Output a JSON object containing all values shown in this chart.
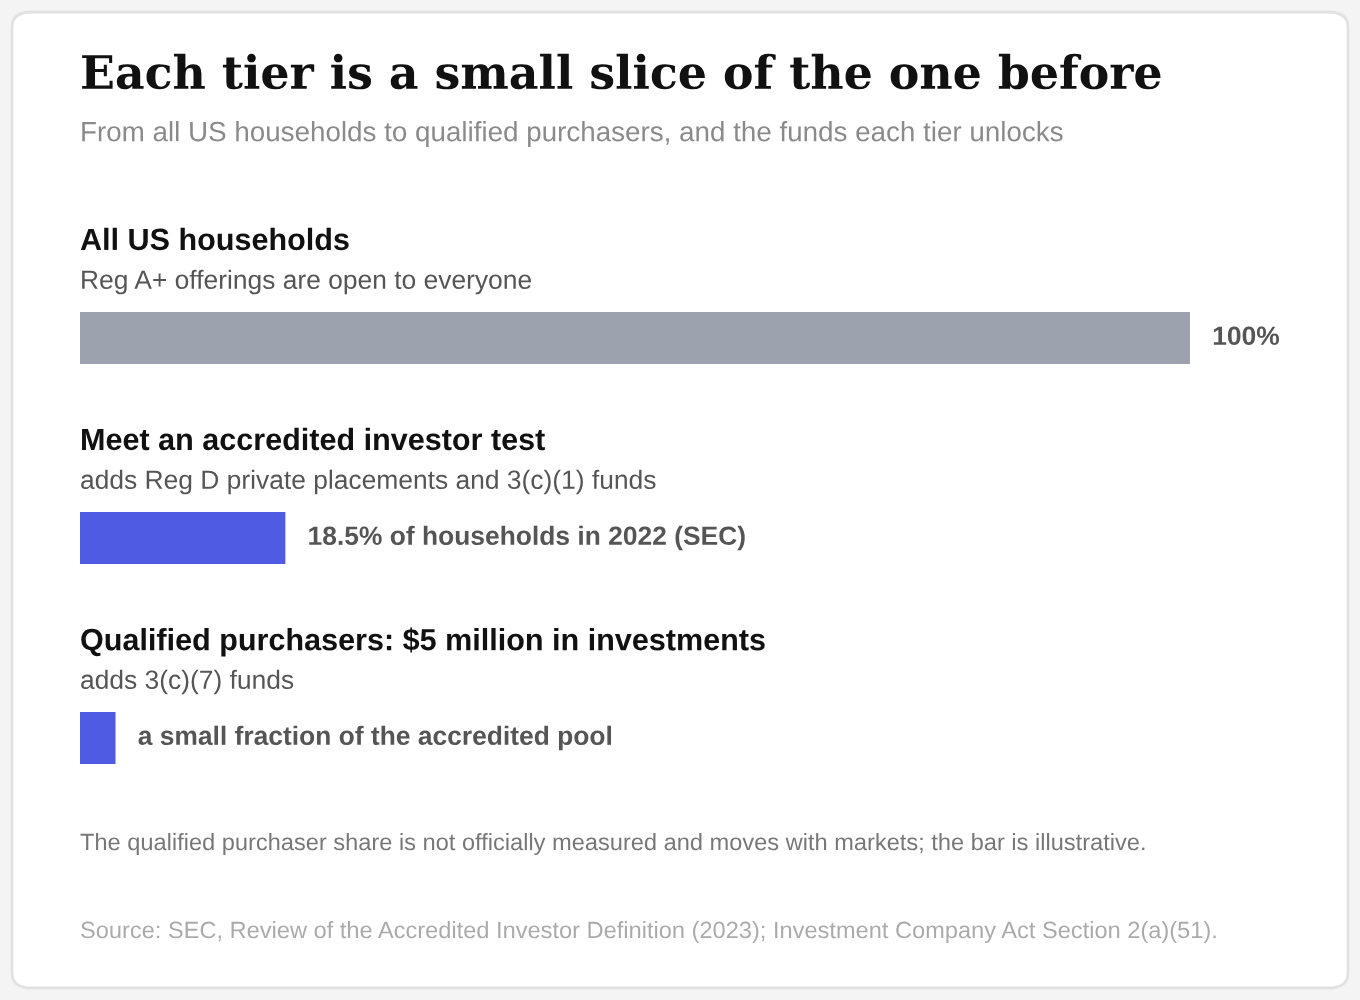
{
  "chart_data": {
    "type": "bar",
    "orientation": "horizontal",
    "title": "Each tier is a small slice of the one before",
    "subtitle": "From all US households to qualified purchasers, and the funds each tier unlocks",
    "categories": [
      "All US households\nReg A+ offerings are open to everyone",
      "Meet an accredited investor test\nadds Reg D private placements and 3(c)(1) funds",
      "Qualified purchasers: $5 million in investments\nadds 3(c)(7) funds"
    ],
    "values": [
      100,
      18.5,
      3.2
    ],
    "colors": [
      "#9ca3af",
      "#4f5be3",
      "#4f5be3"
    ],
    "value_labels": [
      "100%",
      "18.5% of households in 2022 (SEC)",
      "a small fraction of the accredited pool"
    ],
    "annotations": [
      "The qualified purchaser share is not officially measured and moves with markets; the bar is illustrative.",
      "Source: SEC, Review of the Accredited Investor Definition (2023); Investment Company Act Section 2(a)(51)."
    ],
    "legend": false
  }
}
